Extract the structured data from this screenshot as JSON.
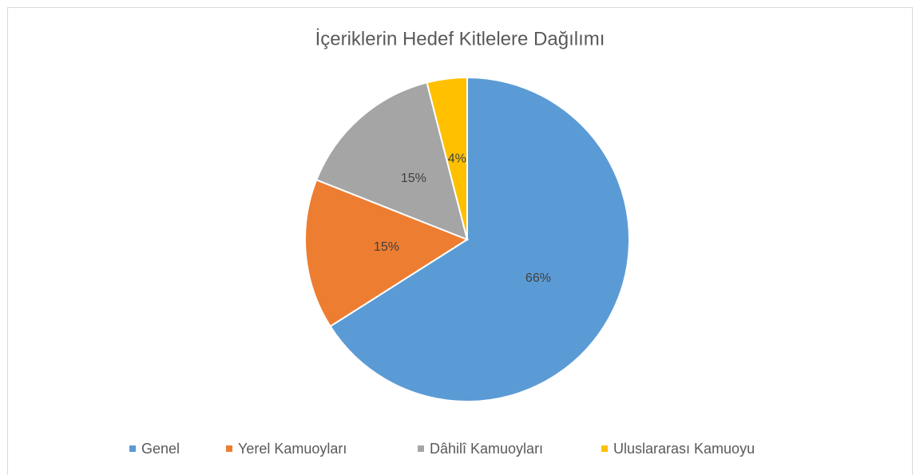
{
  "chart_data": {
    "type": "pie",
    "title": "İçeriklerin Hedef Kitlelere Dağılımı",
    "categories": [
      "Genel",
      "Yerel Kamuoyları",
      "Dâhilî Kamuoyları",
      "Uluslararası Kamuoyu"
    ],
    "values": [
      66,
      15,
      15,
      4
    ],
    "value_labels": [
      "66%",
      "15%",
      "15%",
      "4%"
    ],
    "colors": [
      "#5b9bd5",
      "#ed7d31",
      "#a5a5a5",
      "#ffc000"
    ],
    "legend": "bottom"
  }
}
